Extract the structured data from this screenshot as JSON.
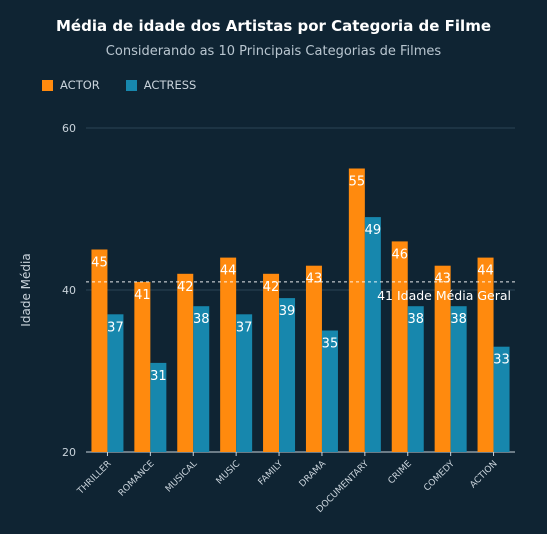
{
  "title": "Média de idade dos Artistas por Categoria de Filme",
  "subtitle": "Considerando as 10 Principais Categorias de Filmes",
  "colors": {
    "background": "#0f2433",
    "actor": "#ff8a0e",
    "actress": "#1787ad",
    "grid": "#2b4556",
    "axis": "#c9d3db",
    "refline": "#ffffff"
  },
  "chart_data": {
    "type": "bar",
    "title": "Média de idade dos Artistas por Categoria de Filme",
    "subtitle": "Considerando as 10 Principais Categorias de Filmes",
    "xlabel": "",
    "ylabel": "Idade Média",
    "ylim": [
      20,
      60
    ],
    "yticks": [
      20,
      40,
      60
    ],
    "grid": true,
    "legend_position": "top-left",
    "categories": [
      "THRILLER",
      "ROMANCE",
      "MUSICAL",
      "MUSIC",
      "FAMILY",
      "DRAMA",
      "DOCUMENTARY",
      "CRIME",
      "COMEDY",
      "ACTION"
    ],
    "series": [
      {
        "name": "ACTOR",
        "color": "#ff8a0e",
        "values": [
          45,
          41,
          42,
          44,
          42,
          43,
          55,
          46,
          43,
          44
        ],
        "labels": [
          "45",
          "41",
          "42",
          "44",
          "42",
          "43",
          "55",
          "46",
          "43",
          "44"
        ]
      },
      {
        "name": "ACTRESS",
        "color": "#1787ad",
        "values": [
          37,
          31,
          38,
          37,
          39,
          35,
          49,
          38,
          38,
          33
        ],
        "labels": [
          "37",
          "31",
          "38",
          "37",
          "39",
          "35",
          "49",
          "38",
          "38",
          "33"
        ]
      }
    ],
    "reference_line": {
      "value": 41,
      "label": "41 Idade Média Geral"
    }
  }
}
